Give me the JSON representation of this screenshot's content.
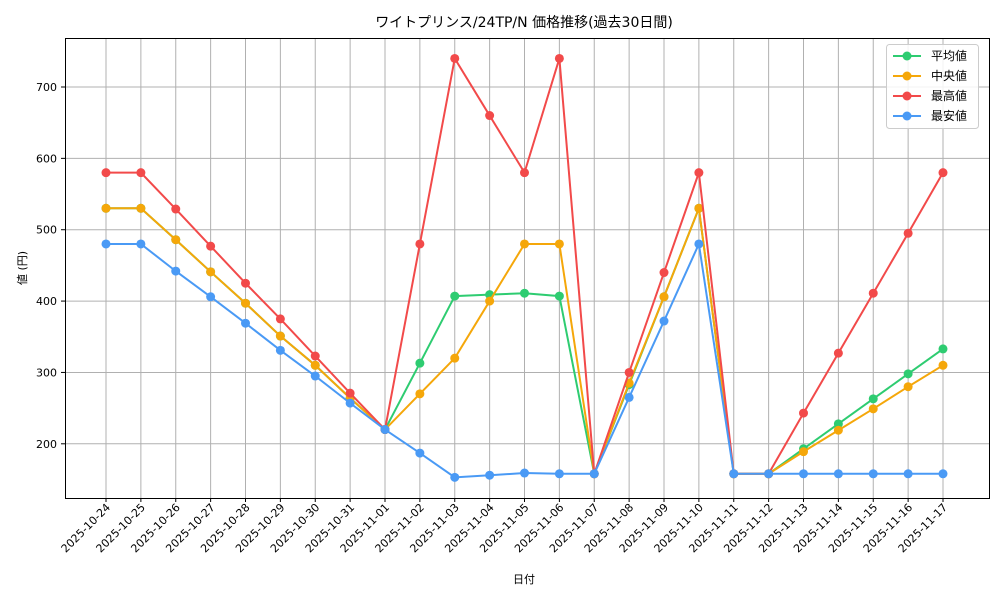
{
  "chart_data": {
    "type": "line",
    "title": "ワイトプリンス/24TP/N 価格推移(過去30日間)",
    "xlabel": "日付",
    "ylabel": "値 (円)",
    "ylim": [
      122,
      768
    ],
    "yticks": [
      200,
      300,
      400,
      500,
      600,
      700
    ],
    "grid": true,
    "legend_position": "upper right",
    "categories": [
      "2025-10-24",
      "2025-10-25",
      "2025-10-26",
      "2025-10-27",
      "2025-10-28",
      "2025-10-29",
      "2025-10-30",
      "2025-10-31",
      "2025-11-01",
      "2025-11-02",
      "2025-11-03",
      "2025-11-04",
      "2025-11-05",
      "2025-11-06",
      "2025-11-07",
      "2025-11-08",
      "2025-11-09",
      "2025-11-10",
      "2025-11-11",
      "2025-11-12",
      "2025-11-13",
      "2025-11-14",
      "2025-11-15",
      "2025-11-16",
      "2025-11-17"
    ],
    "series": [
      {
        "name": "平均値",
        "color": "#2ecc71",
        "values": [
          530,
          530,
          486,
          441,
          397,
          351,
          310,
          264,
          220,
          313,
          407,
          409,
          411,
          407,
          158,
          283,
          406,
          530,
          158,
          158,
          193,
          228,
          263,
          298,
          333
        ]
      },
      {
        "name": "中央値",
        "color": "#f5a70a",
        "values": [
          530,
          530,
          486,
          441,
          397,
          351,
          310,
          264,
          220,
          270,
          320,
          400,
          480,
          480,
          158,
          285,
          406,
          530,
          158,
          158,
          189,
          219,
          249,
          280,
          310
        ]
      },
      {
        "name": "最高値",
        "color": "#f24a4a",
        "values": [
          580,
          580,
          529,
          477,
          425,
          375,
          323,
          271,
          220,
          480,
          740,
          660,
          580,
          740,
          158,
          300,
          440,
          580,
          158,
          158,
          243,
          327,
          411,
          495,
          580
        ]
      },
      {
        "name": "最安値",
        "color": "#4a9af5",
        "values": [
          480,
          480,
          442,
          406,
          369,
          331,
          295,
          257,
          220,
          187,
          153,
          156,
          159,
          158,
          158,
          265,
          372,
          480,
          158,
          158,
          158,
          158,
          158,
          158,
          158
        ]
      }
    ]
  }
}
